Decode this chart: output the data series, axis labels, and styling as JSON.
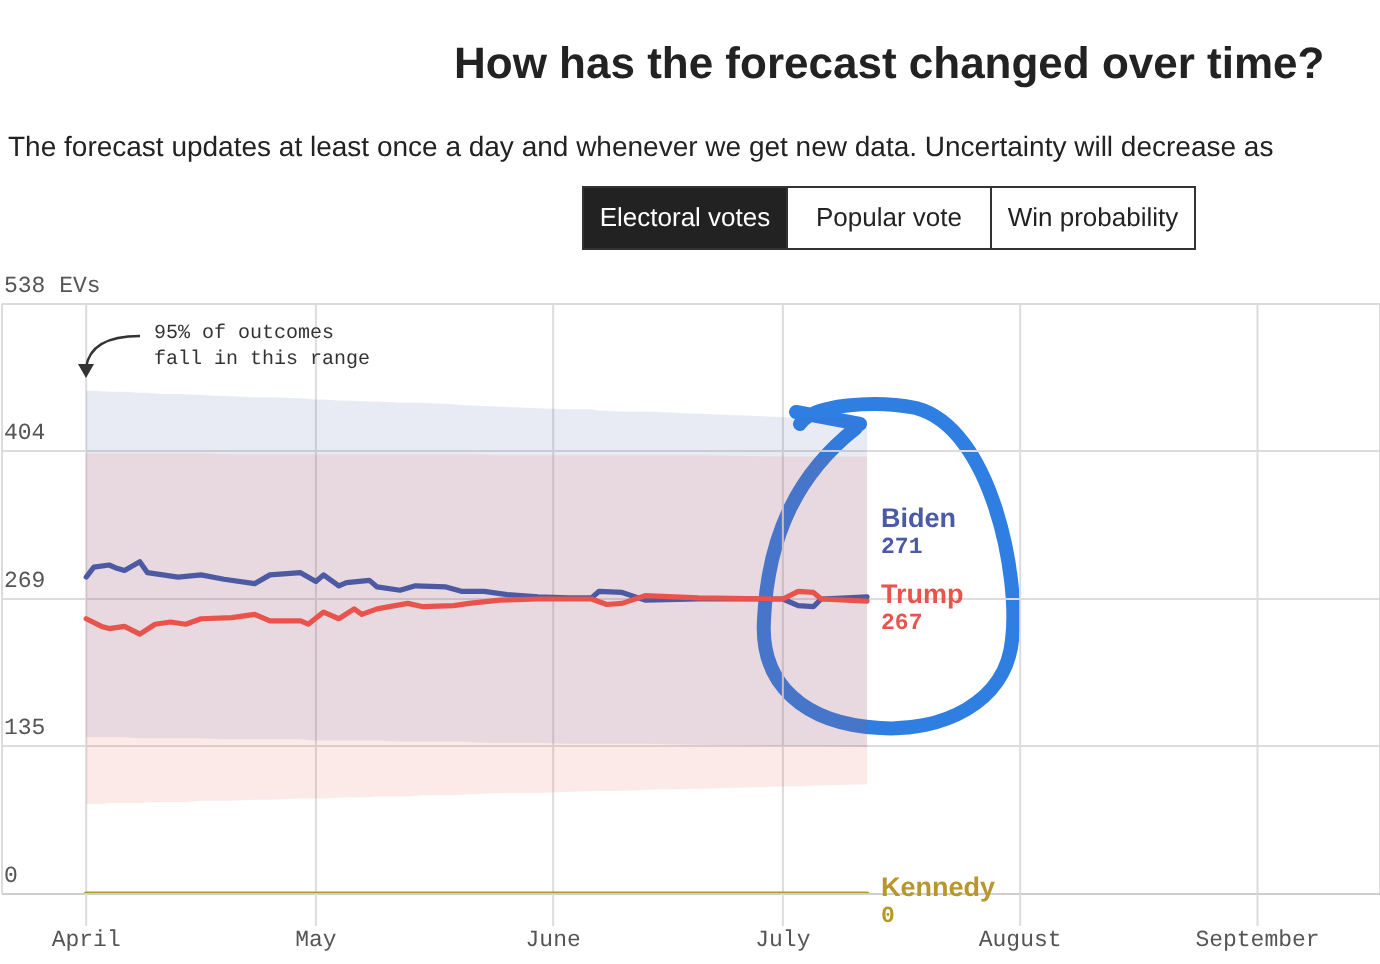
{
  "chart_data": {
    "type": "line",
    "title": "How has the forecast changed over time?",
    "subtitle": "The forecast updates at least once a day and whenever we get new data. Uncertainty will decrease as",
    "annotations": [
      "95% of outcomes fall in this range",
      "Electoral votes",
      "Popular vote",
      "Win probability"
    ],
    "xlim": [
      "--03-21",
      "--09-17"
    ],
    "xticks": [
      {
        "value": "--04-01",
        "label": "April"
      },
      {
        "value": "--05-01",
        "label": "May"
      },
      {
        "value": "--06-01",
        "label": "June"
      },
      {
        "value": "--07-01",
        "label": "July"
      },
      {
        "value": "--08-01",
        "label": "August"
      },
      {
        "value": "--09-01",
        "label": "September"
      }
    ],
    "ylim": [
      0,
      538
    ],
    "yticks": [
      0,
      135,
      269,
      404,
      {
        "value": 538,
        "label": "538 EVs"
      }
    ],
    "grid": true,
    "marker": "none",
    "series": [
      {
        "name": "Biden",
        "color": "#4c5aa3",
        "x": [
          "--04-01",
          "--04-02",
          "--04-04",
          "--04-05",
          "--04-06",
          "--04-08",
          "--04-09",
          "--04-11",
          "--04-13",
          "--04-16",
          "--04-19",
          "--04-23",
          "--04-25",
          "--04-29",
          "--05-01",
          "--05-02",
          "--05-04",
          "--05-05",
          "--05-08",
          "--05-09",
          "--05-12",
          "--05-14",
          "--05-18",
          "--05-20",
          "--05-23",
          "--05-26",
          "--05-30",
          "--06-03",
          "--06-06",
          "--06-07",
          "--06-10",
          "--06-13",
          "--06-20",
          "--07-01",
          "--07-03",
          "--07-05",
          "--07-06",
          "--07-12"
        ],
        "values": [
          289,
          298,
          300,
          297,
          295,
          303,
          293,
          291,
          289,
          291,
          287,
          283,
          291,
          293,
          285,
          291,
          281,
          284,
          286,
          280,
          277,
          281,
          280,
          276,
          276,
          273,
          271,
          270,
          270,
          276,
          275,
          268,
          269,
          269,
          263,
          262,
          269,
          271
        ],
        "lower": [
          143,
          143,
          143,
          143,
          143,
          142,
          142,
          142,
          142,
          142,
          141,
          141,
          141,
          141,
          140,
          140,
          140,
          140,
          140,
          140,
          139,
          139,
          139,
          139,
          138,
          138,
          138,
          137,
          137,
          137,
          137,
          137,
          136,
          135,
          135,
          135,
          135,
          134
        ],
        "upper": [
          459,
          459,
          458,
          458,
          458,
          457,
          457,
          456,
          456,
          455,
          454,
          453,
          453,
          452,
          451,
          451,
          450,
          450,
          449,
          449,
          448,
          448,
          447,
          446,
          445,
          444,
          443,
          442,
          442,
          441,
          440,
          440,
          438,
          435,
          434,
          434,
          434,
          432
        ],
        "value_labels": [
          null,
          null,
          null,
          null,
          null,
          null,
          null,
          null,
          null,
          null,
          null,
          null,
          null,
          null,
          null,
          null,
          null,
          null,
          null,
          null,
          null,
          null,
          null,
          null,
          null,
          null,
          null,
          null,
          null,
          null,
          null,
          null,
          null,
          null,
          null,
          null,
          null,
          "271"
        ]
      },
      {
        "name": "Trump",
        "color": "#e8544b",
        "x": [
          "--04-01",
          "--04-03",
          "--04-04",
          "--04-06",
          "--04-08",
          "--04-10",
          "--04-12",
          "--04-14",
          "--04-16",
          "--04-20",
          "--04-23",
          "--04-25",
          "--04-29",
          "--04-30",
          "--05-02",
          "--05-04",
          "--05-06",
          "--05-07",
          "--05-09",
          "--05-13",
          "--05-15",
          "--05-19",
          "--05-21",
          "--05-25",
          "--05-30",
          "--06-06",
          "--06-08",
          "--06-10",
          "--06-13",
          "--06-20",
          "--07-01",
          "--07-03",
          "--07-05",
          "--07-06",
          "--07-12"
        ],
        "values": [
          251,
          244,
          242,
          244,
          237,
          246,
          248,
          246,
          251,
          252,
          255,
          249,
          249,
          246,
          257,
          251,
          260,
          255,
          260,
          265,
          262,
          263,
          265,
          268,
          269,
          269,
          264,
          265,
          272,
          270,
          269,
          276,
          275,
          269,
          267
        ],
        "lower": [
          82,
          82,
          83,
          83,
          83,
          84,
          84,
          84,
          85,
          85,
          86,
          86,
          87,
          87,
          87,
          88,
          88,
          88,
          89,
          89,
          90,
          90,
          91,
          92,
          92,
          94,
          94,
          94,
          95,
          96,
          98,
          98,
          99,
          99,
          100
        ],
        "upper": [
          402,
          402,
          402,
          402,
          402,
          402,
          402,
          402,
          402,
          401,
          401,
          401,
          401,
          401,
          401,
          401,
          401,
          401,
          401,
          401,
          401,
          401,
          401,
          400,
          400,
          400,
          400,
          400,
          400,
          400,
          399,
          399,
          399,
          399,
          399
        ],
        "value_labels": [
          null,
          null,
          null,
          null,
          null,
          null,
          null,
          null,
          null,
          null,
          null,
          null,
          null,
          null,
          null,
          null,
          null,
          null,
          null,
          null,
          null,
          null,
          null,
          null,
          null,
          null,
          null,
          null,
          null,
          null,
          null,
          null,
          null,
          null,
          "267"
        ]
      },
      {
        "name": "Kennedy",
        "color": "#b8972a",
        "x": [
          "--04-01",
          "--07-12"
        ],
        "values": [
          0,
          0
        ],
        "value_labels": [
          null,
          "0"
        ]
      }
    ]
  }
}
